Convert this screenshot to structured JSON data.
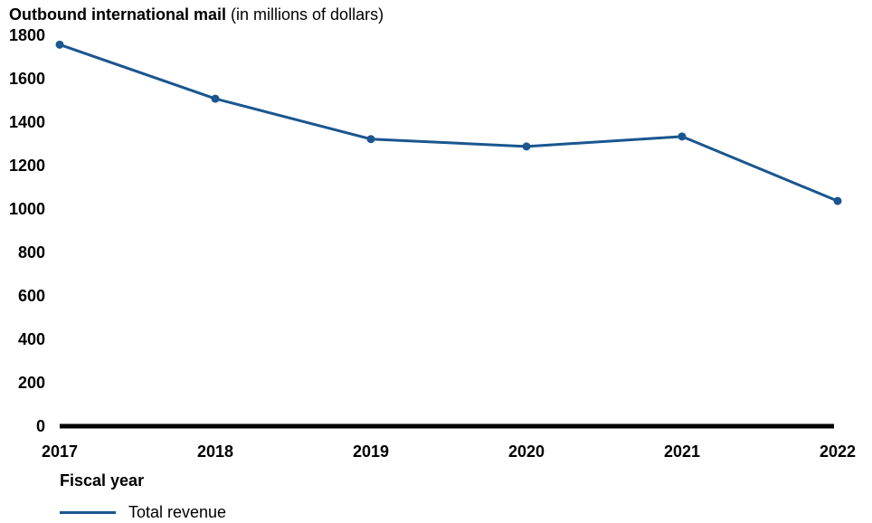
{
  "chart_data": {
    "type": "line",
    "title": "Outbound international mail",
    "title_unit": "(in millions of dollars)",
    "xlabel": "Fiscal year",
    "ylabel": "",
    "categories": [
      "2017",
      "2018",
      "2019",
      "2020",
      "2021",
      "2022"
    ],
    "yticks": [
      0,
      200,
      400,
      600,
      800,
      1000,
      1200,
      1400,
      1600,
      1800
    ],
    "ylim": [
      0,
      1800
    ],
    "grid": false,
    "legend_position": "bottom-left",
    "series": [
      {
        "name": "Total revenue",
        "color": "#1a568f",
        "values": [
          1757,
          1508,
          1322,
          1288,
          1334,
          1037
        ]
      }
    ]
  }
}
